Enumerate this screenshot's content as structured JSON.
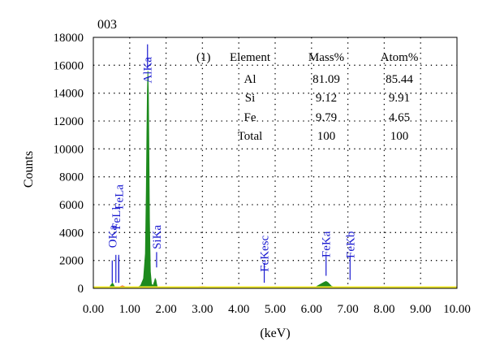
{
  "chart_data": {
    "type": "area",
    "title": "003",
    "xlabel": "(keV)",
    "ylabel": "Counts",
    "xlim": [
      0,
      10
    ],
    "ylim": [
      0,
      18000
    ],
    "x_ticks": [
      "0.00",
      "1.00",
      "2.00",
      "3.00",
      "4.00",
      "5.00",
      "6.00",
      "7.00",
      "8.00",
      "9.00",
      "10.00"
    ],
    "y_ticks": [
      "0",
      "2000",
      "4000",
      "6000",
      "8000",
      "10000",
      "12000",
      "14000",
      "16000",
      "18000"
    ],
    "grid": true,
    "colors": {
      "spectrum": "#1d8a1d",
      "background_noise": "#e0301c",
      "baseline": "#f2ea2a",
      "peak_label": "#1a1ad0"
    },
    "spectrum": {
      "x": [
        0.38,
        0.42,
        0.46,
        0.5,
        0.525,
        0.55,
        0.575,
        0.6,
        0.64,
        0.7,
        0.76,
        0.82,
        0.9,
        1.0,
        1.1,
        1.2,
        1.3,
        1.38,
        1.43,
        1.455,
        1.47,
        1.485,
        1.5,
        1.515,
        1.53,
        1.545,
        1.57,
        1.6,
        1.64,
        1.68,
        1.7,
        1.72,
        1.74,
        1.76,
        1.8,
        1.85,
        1.95,
        2.1,
        2.5,
        3.0,
        4.0,
        5.0,
        5.9,
        6.1,
        6.25,
        6.35,
        6.4,
        6.45,
        6.55,
        6.7,
        6.9,
        7.0,
        7.06,
        7.12,
        7.3,
        8.0,
        10.0
      ],
      "y": [
        0,
        60,
        150,
        300,
        380,
        300,
        150,
        60,
        40,
        60,
        100,
        120,
        80,
        40,
        40,
        60,
        200,
        700,
        2500,
        7000,
        11000,
        14000,
        15600,
        14000,
        10000,
        5000,
        1200,
        300,
        200,
        500,
        700,
        600,
        300,
        120,
        60,
        40,
        30,
        20,
        15,
        10,
        5,
        5,
        20,
        80,
        300,
        450,
        500,
        420,
        150,
        40,
        10,
        60,
        100,
        40,
        10,
        5,
        0
      ]
    },
    "noise": {
      "x": [
        0.6,
        0.7,
        0.8,
        0.9,
        1.0,
        1.2,
        1.4,
        2.2,
        2.6,
        3.0,
        3.4,
        3.8,
        4.4,
        5.2,
        6.0,
        6.9,
        7.0,
        7.1
      ],
      "y": [
        30,
        100,
        180,
        100,
        60,
        50,
        60,
        80,
        110,
        130,
        110,
        90,
        60,
        40,
        30,
        50,
        90,
        40
      ]
    },
    "peaks": [
      {
        "label": "OKa",
        "x": 0.52,
        "marker_count": 1
      },
      {
        "label": "FeLl",
        "x": 0.62,
        "marker_count": 2
      },
      {
        "label": "FeLa",
        "x": 0.7,
        "marker_count": 1
      },
      {
        "label": "AlKa",
        "x": 1.49,
        "marker_count": 1
      },
      {
        "label": "SiKa",
        "x": 1.74,
        "marker_count": 1
      },
      {
        "label": "FeKesc",
        "x": 4.7,
        "marker_count": 1
      },
      {
        "label": "FeKa",
        "x": 6.4,
        "marker_count": 1
      },
      {
        "label": "FeKb",
        "x": 7.06,
        "marker_count": 1
      }
    ],
    "table": {
      "id": "(1)",
      "headers": [
        "Element",
        "Mass%",
        "Atom%"
      ],
      "rows": [
        [
          "Al",
          "81.09",
          "85.44"
        ],
        [
          "Si",
          "9.12",
          "9.91"
        ],
        [
          "Fe",
          "9.79",
          "4.65"
        ],
        [
          "Total",
          "100",
          "100"
        ]
      ]
    }
  }
}
